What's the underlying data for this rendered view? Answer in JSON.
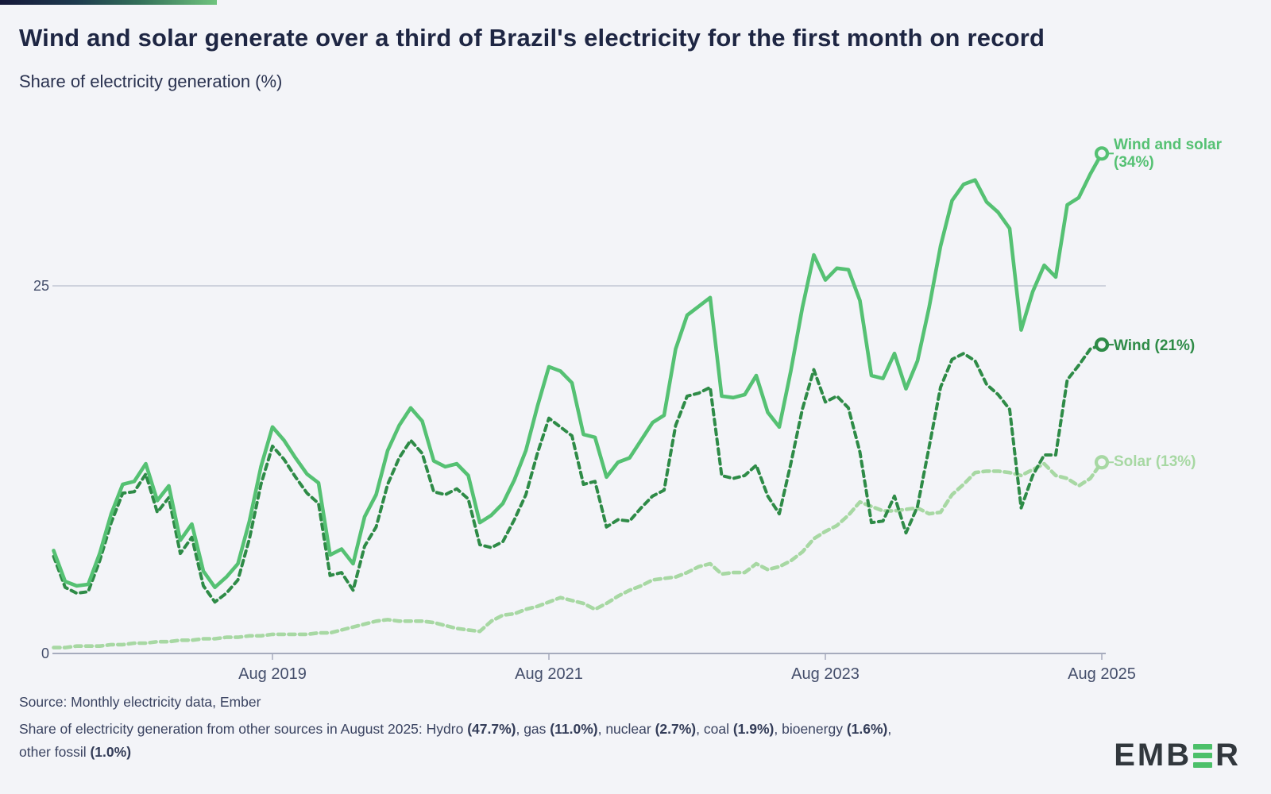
{
  "page": {
    "title": "Wind and solar generate over a third of Brazil's electricity for the first month on record",
    "subtitle": "Share of electricity generation (%)"
  },
  "chart_data": {
    "type": "line",
    "title": "Wind and solar generate over a third of Brazil's electricity for the first month on record",
    "ylabel": "Share of electricity generation (%)",
    "x_unit": "month",
    "x_range": [
      "Jan 2018",
      "Aug 2025"
    ],
    "x_tick_labels": [
      "Aug 2019",
      "Aug 2021",
      "Aug 2023",
      "Aug 2025"
    ],
    "x_tick_month_indices": [
      19,
      43,
      67,
      91
    ],
    "y_tick_labels": [
      "0",
      "25"
    ],
    "y_ticks": [
      0,
      25
    ],
    "ylim": [
      0,
      36.5
    ],
    "grid": "single horizontal gridline at 25",
    "legend_position": "right of line ends",
    "series": [
      {
        "name": "Wind and solar",
        "style": "solid",
        "color": "#55c173",
        "end_label": "Wind and solar",
        "end_value_label": "(34%)",
        "end_value": 34,
        "values": [
          7.0,
          4.9,
          4.6,
          4.7,
          6.8,
          9.5,
          11.5,
          11.7,
          12.9,
          10.4,
          11.4,
          7.7,
          8.8,
          5.6,
          4.5,
          5.2,
          6.1,
          9.0,
          12.7,
          15.4,
          14.5,
          13.3,
          12.2,
          11.6,
          6.7,
          7.1,
          6.1,
          9.3,
          10.8,
          13.8,
          15.5,
          16.7,
          15.8,
          13.1,
          12.7,
          12.9,
          12.1,
          8.9,
          9.4,
          10.2,
          11.8,
          13.8,
          16.8,
          19.5,
          19.2,
          18.4,
          14.9,
          14.7,
          12.0,
          13.0,
          13.3,
          14.5,
          15.7,
          16.2,
          20.7,
          23.0,
          23.6,
          24.2,
          17.5,
          17.4,
          17.6,
          18.9,
          16.4,
          15.4,
          19.2,
          23.5,
          27.1,
          25.4,
          26.2,
          26.1,
          24.0,
          18.9,
          18.7,
          20.4,
          18.0,
          19.9,
          23.5,
          27.7,
          30.8,
          31.9,
          32.2,
          30.7,
          30.0,
          28.9,
          22.0,
          24.6,
          26.4,
          25.6,
          30.5,
          31.0,
          32.6,
          34.0
        ]
      },
      {
        "name": "Wind",
        "style": "dashed",
        "color": "#2e8b47",
        "end_label": "Wind",
        "end_value_label": "(21%)",
        "end_value": 21,
        "values": [
          6.6,
          4.5,
          4.1,
          4.2,
          6.3,
          8.9,
          10.9,
          11.0,
          12.2,
          9.6,
          10.6,
          6.8,
          7.9,
          4.6,
          3.5,
          4.1,
          5.0,
          7.8,
          11.5,
          14.1,
          13.2,
          12.0,
          10.9,
          10.2,
          5.3,
          5.5,
          4.3,
          7.3,
          8.6,
          11.5,
          13.3,
          14.5,
          13.6,
          11.0,
          10.8,
          11.2,
          10.5,
          7.4,
          7.2,
          7.6,
          9.1,
          10.8,
          13.6,
          16.0,
          15.4,
          14.8,
          11.5,
          11.7,
          8.6,
          9.1,
          9.0,
          9.9,
          10.7,
          11.1,
          15.5,
          17.5,
          17.7,
          18.1,
          12.1,
          11.9,
          12.1,
          12.8,
          10.7,
          9.5,
          12.9,
          16.6,
          19.3,
          17.1,
          17.5,
          16.7,
          13.7,
          8.9,
          9.0,
          10.7,
          8.2,
          10.0,
          14.0,
          18.1,
          20.0,
          20.4,
          19.9,
          18.3,
          17.6,
          16.6,
          9.9,
          12.1,
          13.5,
          13.5,
          18.6,
          19.6,
          20.7,
          21.0
        ]
      },
      {
        "name": "Solar",
        "style": "dashed",
        "color": "#a7d8a3",
        "end_label": "Solar",
        "end_value_label": "(13%)",
        "end_value": 13,
        "values": [
          0.4,
          0.4,
          0.5,
          0.5,
          0.5,
          0.6,
          0.6,
          0.7,
          0.7,
          0.8,
          0.8,
          0.9,
          0.9,
          1.0,
          1.0,
          1.1,
          1.1,
          1.2,
          1.2,
          1.3,
          1.3,
          1.3,
          1.3,
          1.4,
          1.4,
          1.6,
          1.8,
          2.0,
          2.2,
          2.3,
          2.2,
          2.2,
          2.2,
          2.1,
          1.9,
          1.7,
          1.6,
          1.5,
          2.2,
          2.6,
          2.7,
          3.0,
          3.2,
          3.5,
          3.8,
          3.6,
          3.4,
          3.0,
          3.4,
          3.9,
          4.3,
          4.6,
          5.0,
          5.1,
          5.2,
          5.5,
          5.9,
          6.1,
          5.4,
          5.5,
          5.5,
          6.1,
          5.7,
          5.9,
          6.3,
          6.9,
          7.8,
          8.3,
          8.7,
          9.4,
          10.3,
          10.0,
          9.7,
          9.7,
          9.8,
          9.9,
          9.5,
          9.6,
          10.8,
          11.5,
          12.3,
          12.4,
          12.4,
          12.3,
          12.1,
          12.5,
          12.9,
          12.1,
          11.9,
          11.4,
          11.9,
          13.0
        ]
      }
    ]
  },
  "footer": {
    "source_line": "Source: Monthly electricity data, Ember",
    "note_segments": [
      {
        "text": "Share of electricity generation from other sources in August 2025: Hydro ",
        "bold": false
      },
      {
        "text": "(47.7%)",
        "bold": true
      },
      {
        "text": ", gas ",
        "bold": false
      },
      {
        "text": "(11.0%)",
        "bold": true
      },
      {
        "text": ", nuclear ",
        "bold": false
      },
      {
        "text": "(2.7%)",
        "bold": true
      },
      {
        "text": ", coal ",
        "bold": false
      },
      {
        "text": "(1.9%)",
        "bold": true
      },
      {
        "text": ", bioenergy ",
        "bold": false
      },
      {
        "text": "(1.6%)",
        "bold": true
      },
      {
        "text": ", other fossil ",
        "bold": false
      },
      {
        "text": "(1.0%)",
        "bold": true
      }
    ]
  },
  "logo": {
    "prefix": "EMB",
    "suffix": "R",
    "bar_color": "#4cc06a",
    "text_color": "#31373d"
  }
}
